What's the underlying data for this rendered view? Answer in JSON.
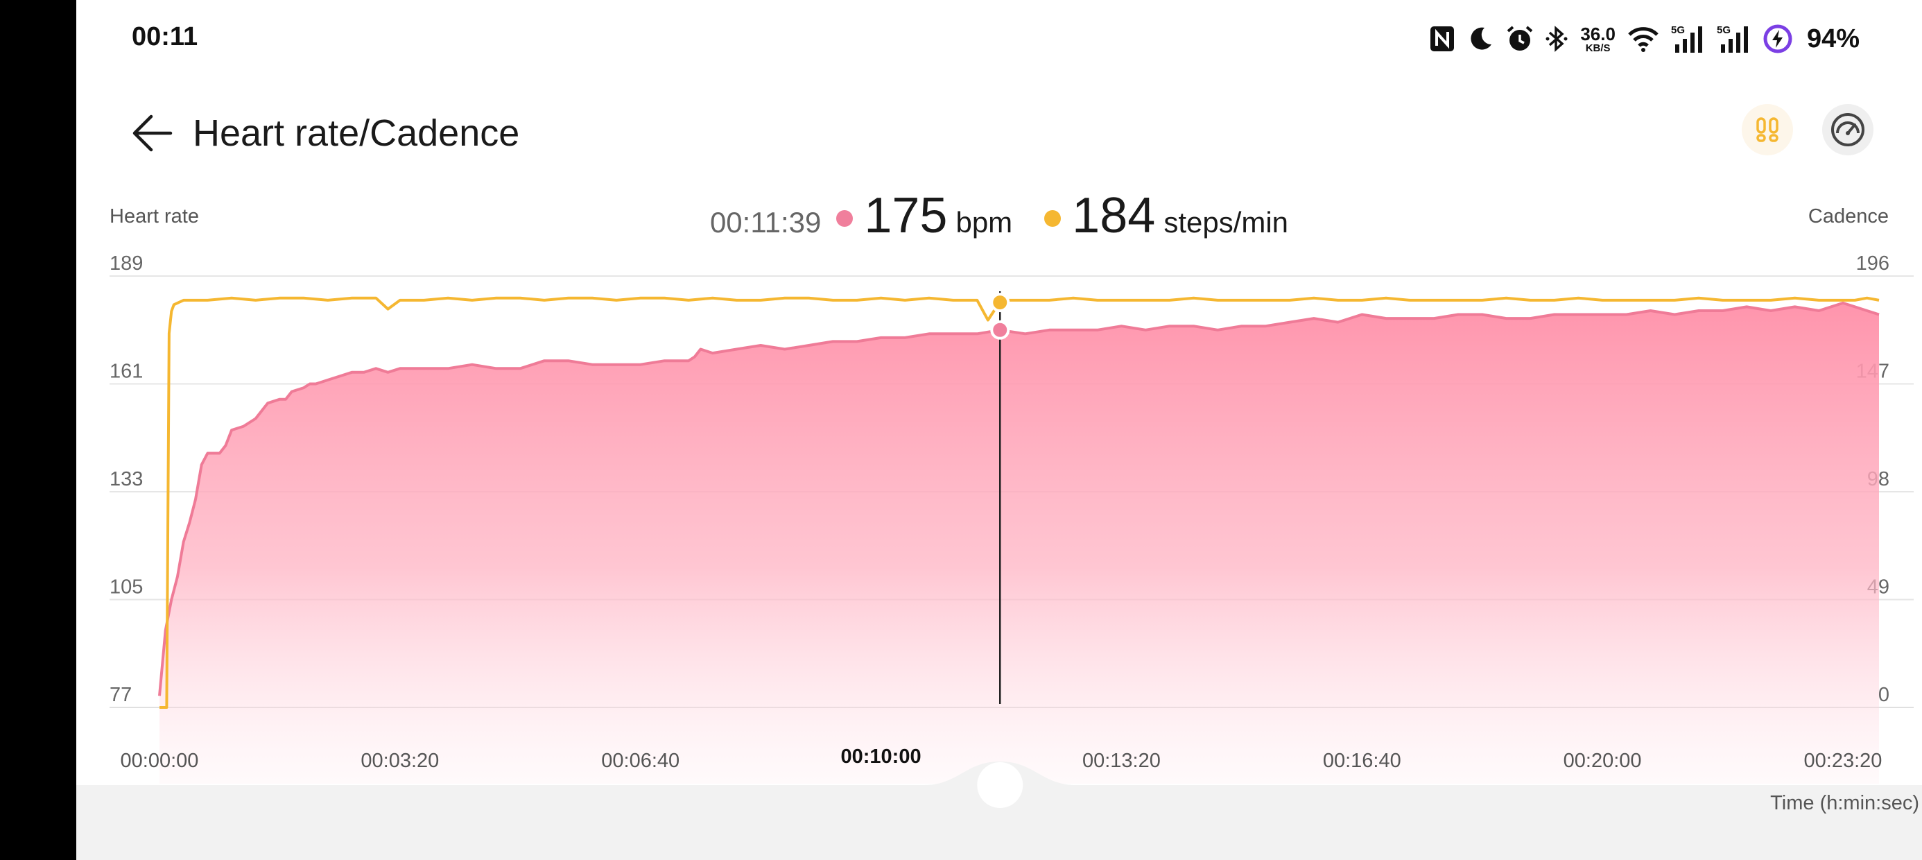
{
  "status_bar": {
    "time": "00:11",
    "net_speed_value": "36.0",
    "net_speed_unit": "KB/S",
    "battery": "94%",
    "icons": [
      "nfc-icon",
      "moon-icon",
      "alarm-icon",
      "bluetooth-icon",
      "wifi-icon",
      "signal-5g-icon",
      "signal-5g-icon",
      "battery-charging-icon"
    ]
  },
  "header": {
    "title": "Heart rate/Cadence",
    "back_icon": "arrow-left-icon",
    "buttons": [
      "footsteps-icon",
      "speedometer-icon"
    ]
  },
  "readout": {
    "time": "00:11:39",
    "heart_rate": "175",
    "heart_rate_unit": "bpm",
    "cadence": "184",
    "cadence_unit": "steps/min"
  },
  "colors": {
    "heart_rate": "#f07f9c",
    "heart_rate_line": "#ef7b97",
    "cadence": "#f5b731",
    "cursor": "#222222"
  },
  "chart_data": {
    "type": "line",
    "left_axis_label": "Heart rate",
    "right_axis_label": "Cadence",
    "x_axis_label": "Time (h:min:sec)",
    "x_ticks": [
      "00:00:00",
      "00:03:20",
      "00:06:40",
      "00:10:00",
      "00:13:20",
      "00:16:40",
      "00:20:00",
      "00:23:20"
    ],
    "x_ticks_seconds": [
      0,
      200,
      400,
      600,
      800,
      1000,
      1200,
      1400
    ],
    "x_highlight_tick": "00:10:00",
    "left_y_ticks": [
      189,
      161,
      133,
      105,
      77
    ],
    "right_y_ticks": [
      196,
      147,
      98,
      49,
      0
    ],
    "left_ylim": [
      77,
      189
    ],
    "right_ylim": [
      0,
      196
    ],
    "xlim": [
      0,
      1430
    ],
    "cursor_x_seconds": 699,
    "series": [
      {
        "name": "Heart rate",
        "axis": "left",
        "x": [
          0,
          5,
          10,
          15,
          20,
          25,
          30,
          35,
          40,
          45,
          50,
          55,
          60,
          70,
          80,
          90,
          100,
          105,
          110,
          120,
          125,
          130,
          140,
          150,
          160,
          170,
          180,
          190,
          200,
          220,
          240,
          260,
          280,
          300,
          320,
          340,
          360,
          380,
          400,
          420,
          440,
          445,
          450,
          460,
          480,
          500,
          520,
          540,
          560,
          580,
          600,
          620,
          640,
          660,
          680,
          699,
          720,
          740,
          760,
          780,
          800,
          820,
          840,
          860,
          880,
          900,
          920,
          940,
          960,
          980,
          1000,
          1020,
          1040,
          1060,
          1080,
          1100,
          1120,
          1140,
          1160,
          1180,
          1200,
          1220,
          1240,
          1260,
          1280,
          1300,
          1320,
          1340,
          1360,
          1380,
          1400,
          1410,
          1420,
          1430
        ],
        "y": [
          80,
          97,
          105,
          111,
          120,
          125,
          131,
          140,
          143,
          143,
          143,
          145,
          149,
          150,
          152,
          156,
          157,
          157,
          159,
          160,
          161,
          161,
          162,
          163,
          164,
          164,
          165,
          164,
          165,
          165,
          165,
          166,
          165,
          165,
          167,
          167,
          166,
          166,
          166,
          167,
          167,
          168,
          170,
          169,
          170,
          171,
          170,
          171,
          172,
          172,
          173,
          173,
          174,
          174,
          174,
          175,
          174,
          175,
          175,
          175,
          176,
          175,
          176,
          176,
          175,
          176,
          176,
          177,
          178,
          177,
          179,
          178,
          178,
          178,
          179,
          179,
          178,
          178,
          179,
          179,
          179,
          179,
          180,
          179,
          180,
          180,
          181,
          180,
          181,
          180,
          182,
          181,
          180,
          179
        ]
      },
      {
        "name": "Cadence",
        "axis": "right",
        "x": [
          0,
          6,
          8,
          10,
          12,
          20,
          40,
          60,
          80,
          100,
          120,
          140,
          160,
          180,
          190,
          200,
          220,
          240,
          260,
          280,
          300,
          320,
          340,
          360,
          380,
          400,
          420,
          440,
          460,
          480,
          500,
          520,
          540,
          560,
          580,
          600,
          620,
          640,
          660,
          680,
          689,
          695,
          699,
          705,
          720,
          740,
          760,
          780,
          800,
          820,
          840,
          860,
          880,
          900,
          920,
          940,
          960,
          980,
          1000,
          1020,
          1040,
          1060,
          1080,
          1100,
          1120,
          1140,
          1160,
          1180,
          1200,
          1220,
          1240,
          1260,
          1280,
          1300,
          1320,
          1340,
          1360,
          1380,
          1400,
          1410,
          1420,
          1430
        ],
        "y": [
          0,
          0,
          170,
          180,
          183,
          185,
          185,
          186,
          185,
          186,
          186,
          185,
          186,
          186,
          181,
          185,
          185,
          186,
          185,
          186,
          186,
          185,
          186,
          186,
          185,
          186,
          186,
          185,
          186,
          185,
          185,
          186,
          186,
          185,
          185,
          186,
          185,
          186,
          185,
          185,
          176,
          181,
          184,
          185,
          185,
          185,
          186,
          185,
          185,
          185,
          185,
          186,
          185,
          185,
          185,
          185,
          186,
          185,
          185,
          186,
          185,
          185,
          185,
          185,
          186,
          185,
          185,
          186,
          185,
          185,
          185,
          185,
          186,
          185,
          185,
          185,
          186,
          185,
          185,
          185,
          186,
          185
        ]
      }
    ]
  }
}
